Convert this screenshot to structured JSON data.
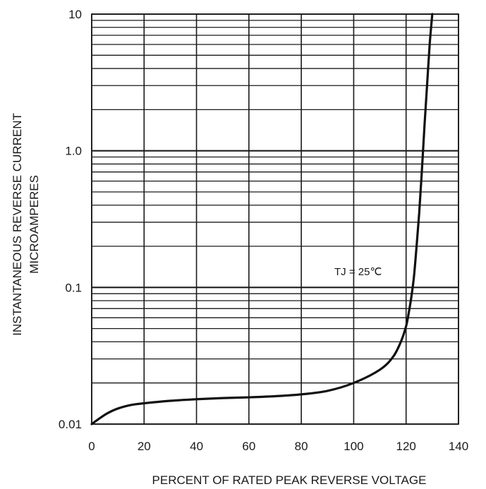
{
  "chart_data": {
    "type": "line",
    "title": "",
    "xlabel": "PERCENT OF RATED PEAK REVERSE VOLTAGE",
    "ylabel_line1": "INSTANTANEOUS REVERSE CURRENT",
    "ylabel_line2": "MICROAMPERES",
    "xlim": [
      0,
      140
    ],
    "ylim": [
      0.01,
      10
    ],
    "y_scale": "log",
    "grid": true,
    "x_ticks": [
      "0",
      "20",
      "40",
      "60",
      "80",
      "100",
      "120",
      "140"
    ],
    "y_ticks": [
      "0.01",
      "0.1",
      "1.0",
      "10"
    ],
    "annotation": "TJ = 25℃",
    "series": [
      {
        "x": [
          0,
          3,
          6,
          10,
          15,
          20,
          30,
          40,
          50,
          60,
          70,
          80,
          90,
          100,
          110,
          115,
          118,
          120,
          121,
          122,
          123,
          124,
          125,
          126,
          127,
          128,
          129,
          130
        ],
        "y": [
          0.01,
          0.011,
          0.012,
          0.013,
          0.0138,
          0.0142,
          0.0148,
          0.0152,
          0.0155,
          0.0157,
          0.016,
          0.0165,
          0.0175,
          0.02,
          0.025,
          0.031,
          0.04,
          0.052,
          0.065,
          0.085,
          0.12,
          0.2,
          0.35,
          0.7,
          1.5,
          3.0,
          6.0,
          10.0
        ]
      }
    ]
  }
}
